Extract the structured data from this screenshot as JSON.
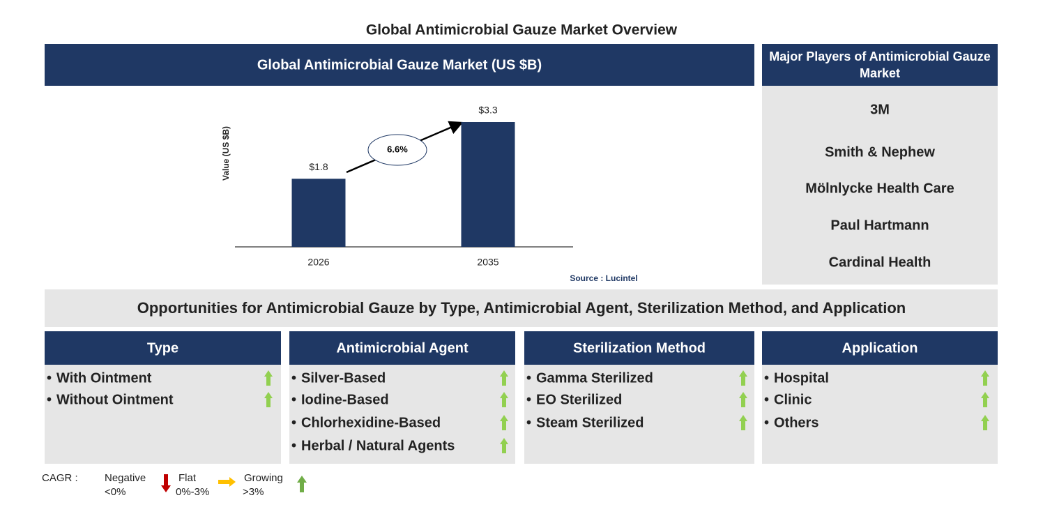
{
  "title": "Global Antimicrobial Gauze Market Overview",
  "chart_data": {
    "type": "bar",
    "title": "Global Antimicrobial Gauze Market (US $B)",
    "y_label": "Value (US $B)",
    "categories": [
      "2026",
      "2035"
    ],
    "values": [
      1.8,
      3.3
    ],
    "value_labels": [
      "$1.8",
      "$3.3"
    ],
    "color": "#1f3864",
    "annotation": "6.6%",
    "source": "Source : Lucintel"
  },
  "players": {
    "title": "Major Players of Antimicrobial Gauze Market",
    "items": [
      "3M",
      "Smith & Nephew",
      "Mölnlycke Health Care",
      "Paul Hartmann",
      "Cardinal Health"
    ]
  },
  "opportunities": {
    "title": "Opportunities for Antimicrobial Gauze by Type, Antimicrobial Agent, Sterilization Method, and Application",
    "segments": [
      {
        "name": "Type",
        "items": [
          "With Ointment",
          "Without Ointment"
        ]
      },
      {
        "name": "Antimicrobial Agent",
        "items": [
          "Silver-Based",
          "Iodine-Based",
          "Chlorhexidine-Based",
          "Herbal / Natural Agents"
        ]
      },
      {
        "name": "Sterilization Method",
        "items": [
          "Gamma Sterilized",
          "EO Sterilized",
          "Steam Sterilized"
        ]
      },
      {
        "name": "Application",
        "items": [
          "Hospital",
          "Clinic",
          "Others"
        ]
      }
    ]
  },
  "legend": {
    "label": "CAGR :",
    "negative": "Negative",
    "negative_range": "<0%",
    "flat": "Flat",
    "flat_range": "0%-3%",
    "growing": "Growing",
    "growing_range": ">3%"
  }
}
